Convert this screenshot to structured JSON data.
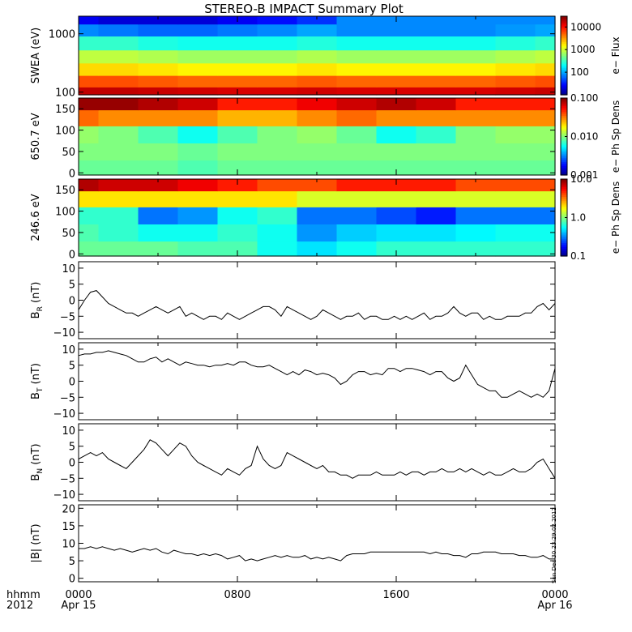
{
  "title": "STEREO-B IMPACT Summary Plot",
  "time_axis": {
    "row1_label": "hhmm",
    "row2_label": "2012",
    "ticks": [
      {
        "hour": 0,
        "time": "0000",
        "date": "Apr 15"
      },
      {
        "hour": 8,
        "time": "0800",
        "date": ""
      },
      {
        "hour": 16,
        "time": "1600",
        "date": ""
      },
      {
        "hour": 24,
        "time": "0000",
        "date": "Apr 16"
      }
    ],
    "range_hours": [
      0,
      24
    ]
  },
  "stamp": "Sun Dec 30 23:29:02 2012",
  "colors": {
    "line": "#000000",
    "axis": "#000000",
    "background": "#ffffff"
  },
  "chart_data": [
    {
      "type": "heatmap",
      "ylabel": "SWEA (eV)",
      "yscale": "log",
      "ylim": [
        90,
        2000
      ],
      "yticks": [
        {
          "v": 100,
          "label": "100"
        },
        {
          "v": 1000,
          "label": "1000"
        }
      ],
      "colorbar": {
        "label": "e− Flux",
        "scale": "log",
        "range": [
          10,
          30000
        ],
        "ticks": [
          {
            "v": 100,
            "label": "100"
          },
          {
            "v": 1000,
            "label": "1000"
          },
          {
            "v": 10000,
            "label": "10000"
          }
        ]
      },
      "x_hours": [
        0,
        2,
        4,
        6,
        8,
        10,
        12,
        14,
        16,
        18,
        20,
        22,
        24
      ],
      "y_values": [
        100,
        150,
        250,
        400,
        700,
        1200,
        1800
      ],
      "z": [
        [
          18000,
          18000,
          17000,
          16000,
          15000,
          15000,
          16000,
          15000,
          15000,
          15000,
          15000,
          16000,
          17000
        ],
        [
          6000,
          6000,
          5500,
          5000,
          5000,
          5000,
          5500,
          5000,
          5000,
          5000,
          5000,
          5500,
          6000
        ],
        [
          2000,
          2000,
          1800,
          1600,
          1600,
          1600,
          1800,
          1600,
          1600,
          1600,
          1600,
          1800,
          2000
        ],
        [
          900,
          900,
          800,
          700,
          700,
          700,
          800,
          700,
          700,
          700,
          700,
          800,
          900
        ],
        [
          300,
          300,
          250,
          230,
          230,
          230,
          260,
          230,
          230,
          230,
          230,
          260,
          300
        ],
        [
          80,
          70,
          60,
          60,
          70,
          80,
          100,
          80,
          80,
          80,
          80,
          90,
          100
        ],
        [
          25,
          20,
          20,
          20,
          25,
          30,
          40,
          80,
          80,
          80,
          80,
          80,
          80
        ]
      ]
    },
    {
      "type": "heatmap",
      "ylabel": "650.7 eV",
      "ylim": [
        -5,
        175
      ],
      "yticks": [
        {
          "v": 0,
          "label": "0"
        },
        {
          "v": 50,
          "label": "50"
        },
        {
          "v": 100,
          "label": "100"
        },
        {
          "v": 150,
          "label": "150"
        }
      ],
      "colorbar": {
        "label": "e− Ph Sp Dens",
        "scale": "log",
        "range": [
          0.001,
          0.1
        ],
        "ticks": [
          {
            "v": 0.001,
            "label": "0.001"
          },
          {
            "v": 0.01,
            "label": "0.010"
          },
          {
            "v": 0.1,
            "label": "0.100"
          }
        ]
      },
      "x_hours": [
        0,
        2,
        4,
        6,
        8,
        10,
        12,
        14,
        16,
        18,
        20,
        22,
        24
      ],
      "y_values": [
        10,
        50,
        90,
        130,
        165
      ],
      "z": [
        [
          0.009,
          0.009,
          0.009,
          0.008,
          0.009,
          0.009,
          0.009,
          0.009,
          0.009,
          0.009,
          0.009,
          0.009,
          0.009
        ],
        [
          0.01,
          0.01,
          0.01,
          0.009,
          0.01,
          0.01,
          0.01,
          0.01,
          0.01,
          0.01,
          0.01,
          0.01,
          0.01
        ],
        [
          0.011,
          0.01,
          0.008,
          0.006,
          0.008,
          0.01,
          0.011,
          0.009,
          0.006,
          0.007,
          0.01,
          0.011,
          0.011
        ],
        [
          0.035,
          0.03,
          0.03,
          0.03,
          0.025,
          0.025,
          0.03,
          0.035,
          0.03,
          0.03,
          0.03,
          0.03,
          0.03
        ],
        [
          0.09,
          0.09,
          0.08,
          0.07,
          0.05,
          0.05,
          0.06,
          0.07,
          0.08,
          0.07,
          0.05,
          0.05,
          0.05
        ]
      ]
    },
    {
      "type": "heatmap",
      "ylabel": "246.6 eV",
      "ylim": [
        -5,
        175
      ],
      "yticks": [
        {
          "v": 0,
          "label": "0"
        },
        {
          "v": 50,
          "label": "50"
        },
        {
          "v": 100,
          "label": "100"
        },
        {
          "v": 150,
          "label": "150"
        }
      ],
      "colorbar": {
        "label": "e− Ph Sp Dens",
        "scale": "log",
        "range": [
          0.1,
          10
        ],
        "ticks": [
          {
            "v": 0.1,
            "label": "0.1"
          },
          {
            "v": 1,
            "label": "1.0"
          },
          {
            "v": 10,
            "label": "10.0"
          }
        ]
      },
      "x_hours": [
        0,
        2,
        4,
        6,
        8,
        10,
        12,
        14,
        16,
        18,
        20,
        22,
        24
      ],
      "y_values": [
        10,
        50,
        90,
        130,
        165
      ],
      "z": [
        [
          0.9,
          0.9,
          0.9,
          0.8,
          0.8,
          0.6,
          0.5,
          0.6,
          0.7,
          0.7,
          0.7,
          0.7,
          0.7
        ],
        [
          0.8,
          0.7,
          0.6,
          0.6,
          0.7,
          0.6,
          0.35,
          0.45,
          0.5,
          0.5,
          0.55,
          0.6,
          0.6
        ],
        [
          0.7,
          0.7,
          0.3,
          0.35,
          0.6,
          0.7,
          0.3,
          0.3,
          0.25,
          0.2,
          0.3,
          0.3,
          0.3
        ],
        [
          2.0,
          2.0,
          2.0,
          2.0,
          2.0,
          2.0,
          1.5,
          1.5,
          1.5,
          1.5,
          1.5,
          1.5,
          1.5
        ],
        [
          8.0,
          7.0,
          7.0,
          6.0,
          5.0,
          4.0,
          4.0,
          5.0,
          5.0,
          5.0,
          4.0,
          4.0,
          4.0
        ]
      ]
    },
    {
      "type": "line",
      "ylabel": "B_R (nT)",
      "ylim": [
        -12,
        12
      ],
      "yticks": [
        {
          "v": -10,
          "label": "−10"
        },
        {
          "v": -5,
          "label": "−5"
        },
        {
          "v": 0,
          "label": "0"
        },
        {
          "v": 5,
          "label": "5"
        },
        {
          "v": 10,
          "label": "10"
        }
      ],
      "x_hours": [
        0,
        0.3,
        0.6,
        0.9,
        1.2,
        1.5,
        1.8,
        2.1,
        2.4,
        2.7,
        3.0,
        3.3,
        3.6,
        3.9,
        4.2,
        4.5,
        4.8,
        5.1,
        5.4,
        5.7,
        6.0,
        6.3,
        6.6,
        6.9,
        7.2,
        7.5,
        7.8,
        8.1,
        8.4,
        8.7,
        9.0,
        9.3,
        9.6,
        9.9,
        10.2,
        10.5,
        10.8,
        11.1,
        11.4,
        11.7,
        12.0,
        12.3,
        12.6,
        12.9,
        13.2,
        13.5,
        13.8,
        14.1,
        14.4,
        14.7,
        15.0,
        15.3,
        15.6,
        15.9,
        16.2,
        16.5,
        16.8,
        17.1,
        17.4,
        17.7,
        18.0,
        18.3,
        18.6,
        18.9,
        19.2,
        19.5,
        19.8,
        20.1,
        20.4,
        20.7,
        21.0,
        21.3,
        21.6,
        21.9,
        22.2,
        22.5,
        22.8,
        23.1,
        23.4,
        23.7,
        24.0
      ],
      "y": [
        -3,
        0,
        2.5,
        3,
        1,
        -1,
        -2,
        -3,
        -4,
        -4,
        -5,
        -4,
        -3,
        -2,
        -3,
        -4,
        -3,
        -2,
        -5,
        -4,
        -5,
        -6,
        -5,
        -5,
        -6,
        -4,
        -5,
        -6,
        -5,
        -4,
        -3,
        -2,
        -2,
        -3,
        -5,
        -2,
        -3,
        -4,
        -5,
        -6,
        -5,
        -3,
        -4,
        -5,
        -6,
        -5,
        -5,
        -4,
        -6,
        -5,
        -5,
        -6,
        -6,
        -5,
        -6,
        -5,
        -6,
        -5,
        -4,
        -6,
        -5,
        -5,
        -4,
        -2,
        -4,
        -5,
        -4,
        -4,
        -6,
        -5,
        -6,
        -6,
        -5,
        -5,
        -5,
        -4,
        -4,
        -2,
        -1,
        -3,
        -1
      ]
    },
    {
      "type": "line",
      "ylabel": "B_T (nT)",
      "ylim": [
        -12,
        12
      ],
      "yticks": [
        {
          "v": -10,
          "label": "−10"
        },
        {
          "v": -5,
          "label": "−5"
        },
        {
          "v": 0,
          "label": "0"
        },
        {
          "v": 5,
          "label": "5"
        },
        {
          "v": 10,
          "label": "10"
        }
      ],
      "x_hours": [
        0,
        0.3,
        0.6,
        0.9,
        1.2,
        1.5,
        1.8,
        2.1,
        2.4,
        2.7,
        3.0,
        3.3,
        3.6,
        3.9,
        4.2,
        4.5,
        4.8,
        5.1,
        5.4,
        5.7,
        6.0,
        6.3,
        6.6,
        6.9,
        7.2,
        7.5,
        7.8,
        8.1,
        8.4,
        8.7,
        9.0,
        9.3,
        9.6,
        9.9,
        10.2,
        10.5,
        10.8,
        11.1,
        11.4,
        11.7,
        12.0,
        12.3,
        12.6,
        12.9,
        13.2,
        13.5,
        13.8,
        14.1,
        14.4,
        14.7,
        15.0,
        15.3,
        15.6,
        15.9,
        16.2,
        16.5,
        16.8,
        17.1,
        17.4,
        17.7,
        18.0,
        18.3,
        18.6,
        18.9,
        19.2,
        19.5,
        19.8,
        20.1,
        20.4,
        20.7,
        21.0,
        21.3,
        21.6,
        21.9,
        22.2,
        22.5,
        22.8,
        23.1,
        23.4,
        23.7,
        24.0
      ],
      "y": [
        8,
        8.5,
        8.5,
        9,
        9,
        9.5,
        9,
        8.5,
        8,
        7,
        6,
        6,
        7,
        7.5,
        6,
        7,
        6,
        5,
        6,
        5.5,
        5,
        5,
        4.5,
        5,
        5,
        5.5,
        5,
        6,
        6,
        5,
        4.5,
        4.5,
        5,
        4,
        3,
        2,
        3,
        2,
        3.5,
        3,
        2,
        2.5,
        2,
        1,
        -1,
        0,
        2,
        3,
        3,
        2,
        2.5,
        2,
        4,
        4,
        3,
        4,
        4,
        3.5,
        3,
        2,
        3,
        3,
        1,
        0,
        1,
        5,
        2,
        -1,
        -2,
        -3,
        -3,
        -5,
        -5,
        -4,
        -3,
        -4,
        -5,
        -4,
        -5,
        -3,
        4
      ]
    },
    {
      "type": "line",
      "ylabel": "B_N (nT)",
      "ylim": [
        -12,
        12
      ],
      "yticks": [
        {
          "v": -10,
          "label": "−10"
        },
        {
          "v": -5,
          "label": "−5"
        },
        {
          "v": 0,
          "label": "0"
        },
        {
          "v": 5,
          "label": "5"
        },
        {
          "v": 10,
          "label": "10"
        }
      ],
      "x_hours": [
        0,
        0.3,
        0.6,
        0.9,
        1.2,
        1.5,
        1.8,
        2.1,
        2.4,
        2.7,
        3.0,
        3.3,
        3.6,
        3.9,
        4.2,
        4.5,
        4.8,
        5.1,
        5.4,
        5.7,
        6.0,
        6.3,
        6.6,
        6.9,
        7.2,
        7.5,
        7.8,
        8.1,
        8.4,
        8.7,
        9.0,
        9.3,
        9.6,
        9.9,
        10.2,
        10.5,
        10.8,
        11.1,
        11.4,
        11.7,
        12.0,
        12.3,
        12.6,
        12.9,
        13.2,
        13.5,
        13.8,
        14.1,
        14.4,
        14.7,
        15.0,
        15.3,
        15.6,
        15.9,
        16.2,
        16.5,
        16.8,
        17.1,
        17.4,
        17.7,
        18.0,
        18.3,
        18.6,
        18.9,
        19.2,
        19.5,
        19.8,
        20.1,
        20.4,
        20.7,
        21.0,
        21.3,
        21.6,
        21.9,
        22.2,
        22.5,
        22.8,
        23.1,
        23.4,
        23.7,
        24.0
      ],
      "y": [
        1,
        2,
        3,
        2,
        3,
        1,
        0,
        -1,
        -2,
        0,
        2,
        4,
        7,
        6,
        4,
        2,
        4,
        6,
        5,
        2,
        0,
        -1,
        -2,
        -3,
        -4,
        -2,
        -3,
        -4,
        -2,
        -1,
        5,
        1,
        -1,
        -2,
        -1,
        3,
        2,
        1,
        0,
        -1,
        -2,
        -1,
        -3,
        -3,
        -4,
        -4,
        -5,
        -4,
        -4,
        -4,
        -3,
        -4,
        -4,
        -4,
        -3,
        -4,
        -3,
        -3,
        -4,
        -3,
        -3,
        -2,
        -3,
        -3,
        -2,
        -3,
        -2,
        -3,
        -4,
        -3,
        -4,
        -4,
        -3,
        -2,
        -3,
        -3,
        -2,
        0,
        1,
        -2,
        -5
      ]
    },
    {
      "type": "line",
      "ylabel": "|B| (nT)",
      "ylim": [
        -1,
        21
      ],
      "yticks": [
        {
          "v": 0,
          "label": "0"
        },
        {
          "v": 5,
          "label": "5"
        },
        {
          "v": 10,
          "label": "10"
        },
        {
          "v": 15,
          "label": "15"
        },
        {
          "v": 20,
          "label": "20"
        }
      ],
      "x_hours": [
        0,
        0.3,
        0.6,
        0.9,
        1.2,
        1.5,
        1.8,
        2.1,
        2.4,
        2.7,
        3.0,
        3.3,
        3.6,
        3.9,
        4.2,
        4.5,
        4.8,
        5.1,
        5.4,
        5.7,
        6.0,
        6.3,
        6.6,
        6.9,
        7.2,
        7.5,
        7.8,
        8.1,
        8.4,
        8.7,
        9.0,
        9.3,
        9.6,
        9.9,
        10.2,
        10.5,
        10.8,
        11.1,
        11.4,
        11.7,
        12.0,
        12.3,
        12.6,
        12.9,
        13.2,
        13.5,
        13.8,
        14.1,
        14.4,
        14.7,
        15.0,
        15.3,
        15.6,
        15.9,
        16.2,
        16.5,
        16.8,
        17.1,
        17.4,
        17.7,
        18.0,
        18.3,
        18.6,
        18.9,
        19.2,
        19.5,
        19.8,
        20.1,
        20.4,
        20.7,
        21.0,
        21.3,
        21.6,
        21.9,
        22.2,
        22.5,
        22.8,
        23.1,
        23.4,
        23.7,
        24.0
      ],
      "y": [
        8.5,
        8.5,
        9,
        8.5,
        9,
        8.5,
        8,
        8.5,
        8,
        7.5,
        8,
        8.5,
        8,
        8.5,
        7.5,
        7,
        8,
        7.5,
        7,
        7,
        6.5,
        7,
        6.5,
        7,
        6.5,
        5.5,
        6,
        6.5,
        5,
        5.5,
        5,
        5.5,
        6,
        6.5,
        6,
        6.5,
        6,
        6,
        6.5,
        5.5,
        6,
        5.5,
        6,
        5.5,
        5,
        6.5,
        7,
        7,
        7,
        7.5,
        7.5,
        7.5,
        7.5,
        7.5,
        7.5,
        7.5,
        7.5,
        7.5,
        7.5,
        7,
        7.5,
        7,
        7,
        6.5,
        6.5,
        6,
        7,
        7,
        7.5,
        7.5,
        7.5,
        7,
        7,
        7,
        6.5,
        6.5,
        6,
        6,
        6.5,
        5.5,
        5.5
      ]
    }
  ]
}
